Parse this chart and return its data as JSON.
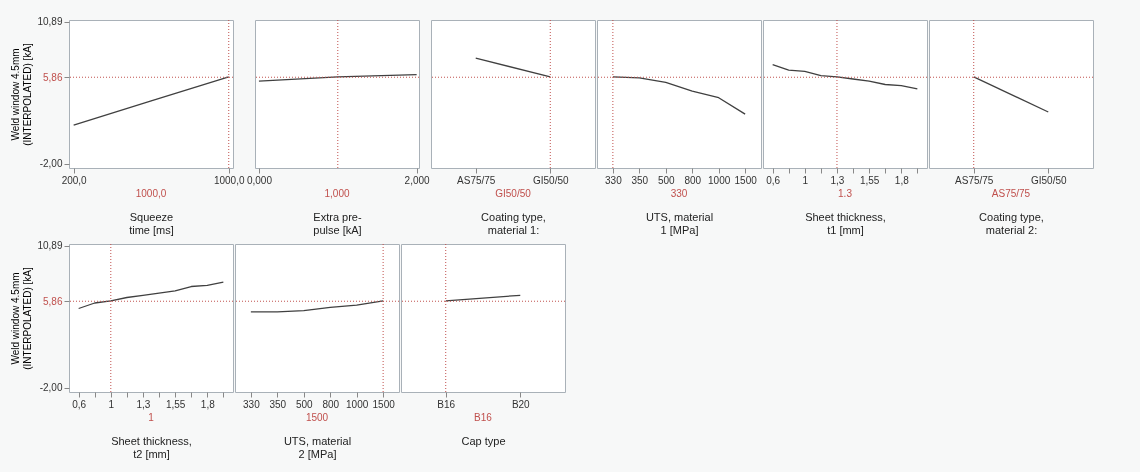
{
  "chart_data": [
    {
      "type": "line",
      "xlabel": "Squeeze time [ms]",
      "ylabel": "Weld window 4.5mm (INTERPOLATED) [kA]",
      "x": [
        200,
        600,
        1000
      ],
      "xlim": [
        176,
        1022
      ],
      "xticks": [
        {
          "value": 200,
          "label": "200,0"
        },
        {
          "value": 1000,
          "label": "1000,0"
        }
      ],
      "ylim": [
        -2.4,
        11.07
      ],
      "yticks": [
        {
          "value": -2,
          "label": "-2,00"
        },
        {
          "value": 5.86,
          "label": "5,86"
        },
        {
          "value": 10.89,
          "label": "10,89"
        }
      ],
      "series": [
        {
          "color": "#404040",
          "values": [
            1.5,
            3.7,
            5.9
          ]
        }
      ],
      "ref_lines": [
        {
          "axis": "x",
          "value": 1000,
          "label": "1000,0",
          "color": "#c0504d",
          "line_style": "dotted"
        },
        {
          "axis": "y",
          "value": 5.86,
          "color": "#c0504d",
          "line_style": "dotted"
        }
      ]
    },
    {
      "type": "line",
      "xlabel": "Extra pre-pulse [kA]",
      "x": [
        0,
        1,
        2
      ],
      "xlim": [
        -0.05,
        2.03
      ],
      "xticks": [
        {
          "value": 0,
          "label": "0,000"
        },
        {
          "value": 2,
          "label": "2,000"
        }
      ],
      "ylim": [
        -2.4,
        11.07
      ],
      "tick_labels": "x",
      "series": [
        {
          "color": "#404040",
          "values": [
            5.5,
            5.9,
            6.1
          ]
        }
      ],
      "ref_lines": [
        {
          "axis": "x",
          "value": 1,
          "label": "1,000",
          "color": "#c0504d",
          "line_style": "dotted"
        },
        {
          "axis": "y",
          "value": 5.86,
          "color": "#c0504d",
          "line_style": "dotted"
        }
      ]
    },
    {
      "type": "line",
      "xlabel": "Coating type, material 1:",
      "categories": [
        "AS75/75",
        "GI50/50"
      ],
      "ylim": [
        -2.4,
        11.07
      ],
      "tick_labels": "x",
      "series": [
        {
          "color": "#404040",
          "values": [
            7.6,
            5.9
          ]
        }
      ],
      "ref_lines": [
        {
          "axis": "x",
          "value": "GI50/50",
          "label": "GI50/50",
          "color": "#c0504d",
          "line_style": "dotted"
        },
        {
          "axis": "y",
          "value": 5.86,
          "color": "#c0504d",
          "line_style": "dotted"
        }
      ]
    },
    {
      "type": "line",
      "xlabel": "UTS, material 1 [MPa]",
      "categories": [
        "330",
        "350",
        "500",
        "800",
        "1000",
        "1500"
      ],
      "ylim": [
        -2.4,
        11.07
      ],
      "tick_labels": "x",
      "series": [
        {
          "color": "#404040",
          "values": [
            5.9,
            5.8,
            5.4,
            4.6,
            4.0,
            2.5
          ]
        }
      ],
      "ref_lines": [
        {
          "axis": "x",
          "value": "330",
          "label": "330",
          "color": "#c0504d",
          "line_style": "dotted"
        },
        {
          "axis": "y",
          "value": 5.86,
          "color": "#c0504d",
          "line_style": "dotted"
        }
      ]
    },
    {
      "type": "line",
      "xlabel": "Sheet thickness, t1 [mm]",
      "categories": [
        "0,6",
        null,
        "1",
        null,
        "1,3",
        null,
        "1,55",
        null,
        "1,8",
        null
      ],
      "ylim": [
        -2.4,
        11.07
      ],
      "tick_labels": "x",
      "series": [
        {
          "color": "#404040",
          "values": [
            7.0,
            6.5,
            6.4,
            6.0,
            5.9,
            5.7,
            5.5,
            5.2,
            5.1,
            4.8
          ]
        }
      ],
      "ref_lines": [
        {
          "axis": "x",
          "value": "1,3",
          "label": "1.3",
          "color": "#c0504d",
          "line_style": "dotted"
        },
        {
          "axis": "y",
          "value": 5.86,
          "color": "#c0504d",
          "line_style": "dotted"
        }
      ]
    },
    {
      "type": "line",
      "xlabel": "Coating type, material 2:",
      "categories": [
        "AS75/75",
        "GI50/50"
      ],
      "ylim": [
        -2.4,
        11.07
      ],
      "tick_labels": "x",
      "series": [
        {
          "color": "#404040",
          "values": [
            5.9,
            2.7
          ]
        }
      ],
      "ref_lines": [
        {
          "axis": "x",
          "value": "AS75/75",
          "label": "AS75/75",
          "color": "#c0504d",
          "line_style": "dotted"
        },
        {
          "axis": "y",
          "value": 5.86,
          "color": "#c0504d",
          "line_style": "dotted"
        }
      ]
    },
    {
      "type": "line",
      "xlabel": "Sheet thickness, t2 [mm]",
      "ylabel": "Weld window 4.5mm (INTERPOLATED) [kA]",
      "categories": [
        "0,6",
        null,
        "1",
        null,
        "1,3",
        null,
        "1,55",
        null,
        "1,8",
        null
      ],
      "ylim": [
        -2.4,
        11.07
      ],
      "yticks": [
        {
          "value": -2,
          "label": "-2,00"
        },
        {
          "value": 5.86,
          "label": "5,86"
        },
        {
          "value": 10.89,
          "label": "10,89"
        }
      ],
      "series": [
        {
          "color": "#404040",
          "values": [
            5.2,
            5.7,
            5.9,
            6.2,
            6.4,
            6.6,
            6.8,
            7.2,
            7.3,
            7.6
          ]
        }
      ],
      "ref_lines": [
        {
          "axis": "x",
          "value": "1",
          "label": "1",
          "color": "#c0504d",
          "line_style": "dotted"
        },
        {
          "axis": "y",
          "value": 5.86,
          "color": "#c0504d",
          "line_style": "dotted"
        }
      ]
    },
    {
      "type": "line",
      "xlabel": "UTS, material 2 [MPa]",
      "categories": [
        "330",
        "350",
        "500",
        "800",
        "1000",
        "1500"
      ],
      "ylim": [
        -2.4,
        11.07
      ],
      "tick_labels": "x",
      "series": [
        {
          "color": "#404040",
          "values": [
            4.9,
            4.9,
            5.0,
            5.3,
            5.5,
            5.9
          ]
        }
      ],
      "ref_lines": [
        {
          "axis": "x",
          "value": "1500",
          "label": "1500",
          "color": "#c0504d",
          "line_style": "dotted"
        },
        {
          "axis": "y",
          "value": 5.86,
          "color": "#c0504d",
          "line_style": "dotted"
        }
      ]
    },
    {
      "type": "line",
      "xlabel": "Cap type",
      "categories": [
        "B16",
        "B20"
      ],
      "ylim": [
        -2.4,
        11.07
      ],
      "tick_labels": "x",
      "series": [
        {
          "color": "#404040",
          "values": [
            5.9,
            6.4
          ]
        }
      ],
      "ref_lines": [
        {
          "axis": "x",
          "value": "B16",
          "label": "B16",
          "color": "#c0504d",
          "line_style": "dotted"
        },
        {
          "axis": "y",
          "value": 5.86,
          "color": "#c0504d",
          "line_style": "dotted"
        }
      ]
    }
  ]
}
